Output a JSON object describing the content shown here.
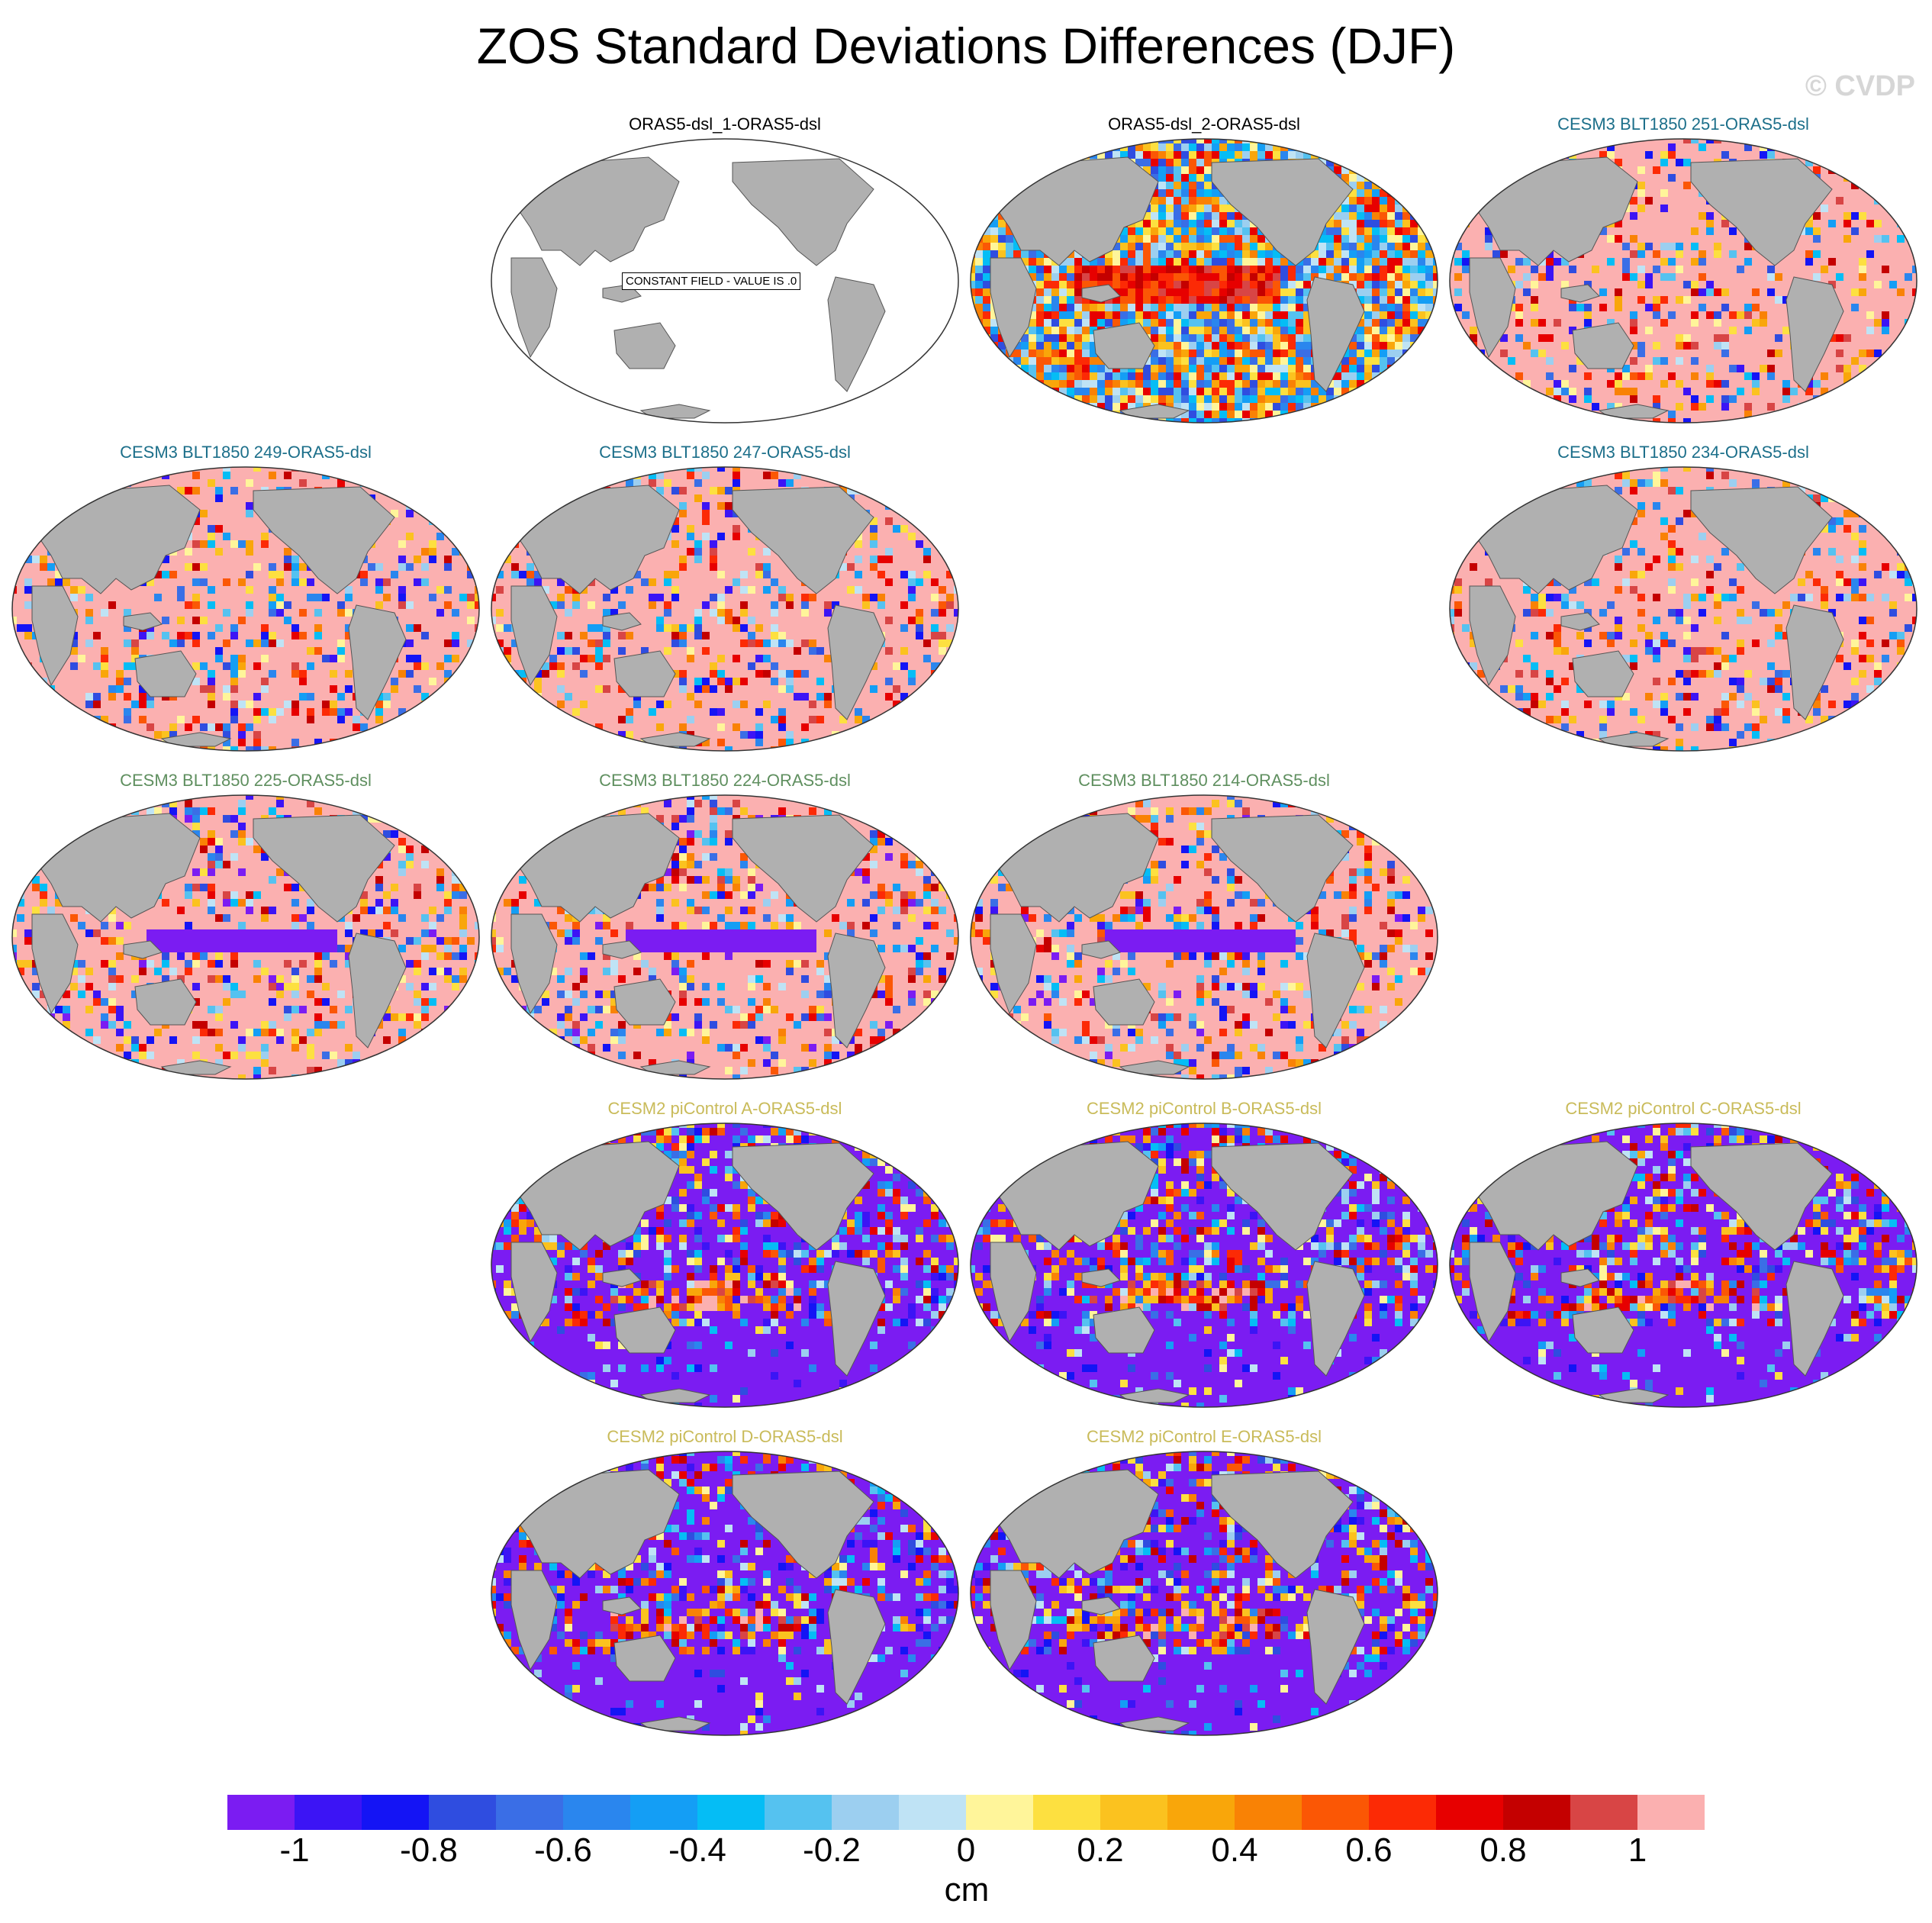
{
  "title": "ZOS Standard Deviations Differences (DJF)",
  "copyright": "© CVDP",
  "constant_field_label": "CONSTANT FIELD - VALUE IS .0",
  "colors": {
    "land": "#b0b0b0",
    "title_obs": "#000000",
    "title_cesm3_a": "#1c6f8a",
    "title_cesm3_b": "#5f8f5f",
    "title_cesm2": "#c9bb5a"
  },
  "panels": [
    {
      "title": "ORAS5-dsl_1-ORAS5-dsl",
      "group": "obs",
      "pattern": "constant"
    },
    {
      "title": "ORAS5-dsl_2-ORAS5-dsl",
      "group": "obs",
      "pattern": "mixed"
    },
    {
      "title": "CESM3 BLT1850 251-ORAS5-dsl",
      "group": "cesm3_a",
      "pattern": "positive"
    },
    {
      "title": "CESM3 BLT1850 249-ORAS5-dsl",
      "group": "cesm3_a",
      "pattern": "positive"
    },
    {
      "title": "CESM3 BLT1850 247-ORAS5-dsl",
      "group": "cesm3_a",
      "pattern": "positive"
    },
    {
      "title": "CESM3 BLT1850 234-ORAS5-dsl",
      "group": "cesm3_a",
      "pattern": "positive"
    },
    {
      "title": "CESM3 BLT1850 225-ORAS5-dsl",
      "group": "cesm3_b",
      "pattern": "positive_band"
    },
    {
      "title": "CESM3 BLT1850 224-ORAS5-dsl",
      "group": "cesm3_b",
      "pattern": "positive_band"
    },
    {
      "title": "CESM3 BLT1850 214-ORAS5-dsl",
      "group": "cesm3_b",
      "pattern": "positive_band"
    },
    {
      "title": "CESM2 piControl A-ORAS5-dsl",
      "group": "cesm2",
      "pattern": "negative"
    },
    {
      "title": "CESM2 piControl B-ORAS5-dsl",
      "group": "cesm2",
      "pattern": "negative"
    },
    {
      "title": "CESM2 piControl C-ORAS5-dsl",
      "group": "cesm2",
      "pattern": "negative"
    },
    {
      "title": "CESM2 piControl D-ORAS5-dsl",
      "group": "cesm2",
      "pattern": "negative"
    },
    {
      "title": "CESM2 piControl E-ORAS5-dsl",
      "group": "cesm2",
      "pattern": "negative"
    }
  ],
  "colorbar": {
    "colors": [
      "#7b1cf2",
      "#3c14f5",
      "#1414f5",
      "#2f4de0",
      "#3a6ee6",
      "#2a86ee",
      "#149ef5",
      "#05bdf5",
      "#55c2f0",
      "#9ccff0",
      "#bfe3f5",
      "#fff59a",
      "#fde040",
      "#fbc21f",
      "#f9a60a",
      "#f98205",
      "#fb5705",
      "#fc2a05",
      "#e70000",
      "#c40000",
      "#d84545",
      "#fbb0b0"
    ],
    "tick_labels": [
      "-1",
      "-0.8",
      "-0.6",
      "-0.4",
      "-0.2",
      "0",
      "0.2",
      "0.4",
      "0.6",
      "0.8",
      "1"
    ],
    "units": "cm"
  }
}
